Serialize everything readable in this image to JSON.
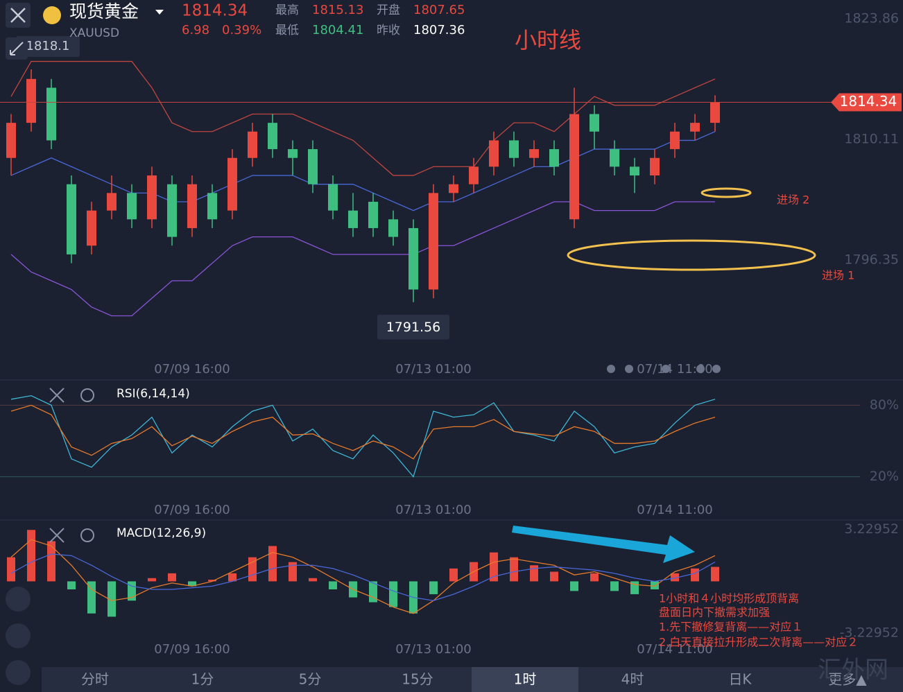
{
  "quote": {
    "name": "现货黄金",
    "symbol": "XAUUSD",
    "price": "1814.34",
    "change": "6.98",
    "change_pct": "0.39%",
    "high_label": "最高",
    "high": "1815.13",
    "open_label": "开盘",
    "open": "1807.65",
    "low_label": "最低",
    "low": "1804.41",
    "prev_label": "昨收",
    "prev": "1807.36"
  },
  "chart_title": "小时线",
  "entries": [
    "进场 2",
    "进场 1"
  ],
  "notes": [
    "1小时和４小时均形成顶背离",
    "盘面日内下撤需求加强",
    "1.先下撤修复背离——对应１",
    "2.白天直接拉升形成二次背离——对应２"
  ],
  "tabs": {
    "items": [
      "分时",
      "1分",
      "5分",
      "15分",
      "1时",
      "4时",
      "日K",
      "更多▲"
    ],
    "selected": 4
  },
  "watermark": "汇外网",
  "chart_data": [
    {
      "type": "candlestick",
      "up_color": "#e9493f",
      "down_color": "#3ebf80",
      "categories": [
        null,
        null,
        null,
        null,
        null,
        null,
        null,
        null,
        null,
        "07/09 16:00",
        null,
        null,
        null,
        null,
        null,
        null,
        null,
        null,
        null,
        null,
        null,
        "07/13 01:00",
        null,
        null,
        null,
        null,
        null,
        null,
        null,
        null,
        null,
        null,
        null,
        "07/14 11:00",
        null,
        null
      ],
      "open": [
        1808,
        1812,
        1816,
        1805,
        1798,
        1802,
        1804,
        1801,
        1805,
        1800,
        1804,
        1802,
        1808,
        1812,
        1809,
        1809,
        1805,
        1802,
        1803,
        1801,
        1800,
        1793,
        1804,
        1805,
        1807,
        1810,
        1808,
        1809,
        1801,
        1813,
        1809,
        1807,
        1806,
        1809,
        1811,
        1812
      ],
      "close": [
        1812,
        1817,
        1810,
        1797,
        1802,
        1804,
        1801,
        1806,
        1799,
        1805,
        1801,
        1808,
        1811,
        1809,
        1808,
        1805,
        1802,
        1800,
        1800,
        1799,
        1793,
        1804,
        1805,
        1807,
        1810,
        1808,
        1809,
        1807,
        1813,
        1811,
        1807,
        1806,
        1808,
        1811,
        1812,
        1814.34
      ],
      "high": [
        1813,
        1818.1,
        1817,
        1806,
        1803,
        1806,
        1805,
        1807,
        1806,
        1806,
        1805,
        1809,
        1812,
        1813,
        1810,
        1810,
        1806,
        1804,
        1804,
        1802,
        1801,
        1805,
        1806,
        1808,
        1811,
        1811,
        1810,
        1810,
        1816,
        1814,
        1810,
        1808,
        1809,
        1812,
        1813,
        1815.13
      ],
      "low": [
        1806,
        1811,
        1809,
        1796,
        1797,
        1801,
        1800,
        1800,
        1798,
        1799,
        1800,
        1801,
        1807,
        1808,
        1806,
        1804,
        1801,
        1799,
        1799,
        1798,
        1791.56,
        1792,
        1803,
        1804,
        1806,
        1807,
        1807,
        1806,
        1800,
        1809,
        1806,
        1804,
        1805,
        1808,
        1810,
        1811
      ],
      "bands": [
        {
          "color": "#c0463f",
          "values": [
            1815,
            1819,
            1819,
            1819,
            1819,
            1819,
            1819,
            1816,
            1812,
            1811,
            1811,
            1812,
            1813,
            1813,
            1813,
            1812,
            1811,
            1810,
            1808,
            1806,
            1806,
            1807,
            1807,
            1807,
            1810,
            1812,
            1812,
            1811,
            1813,
            1815,
            1814,
            1814,
            1814,
            1815,
            1816,
            1817
          ]
        },
        {
          "color": "#4a68d8",
          "values": [
            1806,
            1807,
            1808,
            1807,
            1806,
            1805,
            1804,
            1804,
            1803,
            1803,
            1804,
            1805,
            1806,
            1806,
            1806,
            1805,
            1805,
            1805,
            1804,
            1803,
            1802,
            1803,
            1803,
            1804,
            1805,
            1806,
            1807,
            1807,
            1808,
            1809,
            1809,
            1809,
            1809,
            1810,
            1810,
            1811
          ]
        },
        {
          "color": "#8a55d8",
          "values": [
            1797,
            1795,
            1794,
            1793,
            1791,
            1790,
            1790,
            1792,
            1794,
            1794,
            1796,
            1798,
            1799,
            1799,
            1799,
            1798,
            1797,
            1797,
            1797,
            1797,
            1797,
            1798,
            1798,
            1799,
            1800,
            1801,
            1802,
            1803,
            1803,
            1802,
            1802,
            1802,
            1802,
            1803,
            1803,
            1803
          ]
        }
      ],
      "ylim": [
        1784.9,
        1826.0
      ],
      "yticks": [
        1823.86,
        1810.11,
        1796.35
      ]
    },
    {
      "type": "line",
      "title": "RSI(6,14,14)",
      "categories": [
        null,
        null,
        null,
        null,
        null,
        null,
        null,
        null,
        null,
        "07/09 16:00",
        null,
        null,
        null,
        null,
        null,
        null,
        null,
        null,
        null,
        null,
        null,
        "07/13 01:00",
        null,
        null,
        null,
        null,
        null,
        null,
        null,
        null,
        null,
        null,
        null,
        "07/14 11:00",
        null,
        null
      ],
      "series": [
        {
          "color": "#3fb6d6",
          "values": [
            85,
            88,
            80,
            35,
            28,
            45,
            55,
            70,
            40,
            55,
            45,
            62,
            75,
            80,
            50,
            60,
            42,
            35,
            55,
            40,
            20,
            75,
            70,
            72,
            82,
            58,
            55,
            50,
            75,
            62,
            40,
            45,
            48,
            65,
            80,
            85
          ]
        },
        {
          "color": "#e77a2a",
          "values": [
            75,
            80,
            72,
            45,
            38,
            48,
            52,
            62,
            46,
            54,
            48,
            58,
            66,
            70,
            55,
            56,
            48,
            42,
            50,
            45,
            35,
            60,
            62,
            62,
            68,
            58,
            56,
            54,
            62,
            58,
            48,
            48,
            50,
            58,
            65,
            70
          ]
        }
      ],
      "ylim": [
        0,
        100
      ],
      "yticks": [
        {
          "value": 80,
          "label": "80%"
        },
        {
          "value": 20,
          "label": "20%"
        }
      ]
    },
    {
      "type": "bar",
      "title": "MACD(12,26,9)",
      "up_color": "#e9493f",
      "down_color": "#3ebf80",
      "categories": [
        null,
        null,
        null,
        null,
        null,
        null,
        null,
        null,
        null,
        "07/09 16:00",
        null,
        null,
        null,
        null,
        null,
        null,
        null,
        null,
        null,
        null,
        null,
        "07/13 01:00",
        null,
        null,
        null,
        null,
        null,
        null,
        null,
        null,
        null,
        null,
        null,
        "07/14 11:00",
        null,
        null
      ],
      "values": [
        1.5,
        3.2,
        2.5,
        -0.5,
        -2,
        -2.2,
        -1.2,
        0.2,
        0.5,
        -0.3,
        0.1,
        0.5,
        1.5,
        2.2,
        1.2,
        0.2,
        -0.5,
        -1,
        -1.3,
        -1.6,
        -2,
        -0.8,
        0.8,
        1.2,
        1.8,
        1.5,
        1,
        0.6,
        -0.6,
        0.5,
        -0.6,
        -0.8,
        -0.5,
        0.5,
        0.8,
        0.9
      ],
      "series": [
        {
          "color": "#e77a2a",
          "values": [
            1.5,
            2.6,
            2.2,
            1.0,
            -0.5,
            -1.2,
            -1,
            -0.4,
            -0.1,
            -0.3,
            0,
            0.6,
            1.2,
            1.8,
            1.5,
            0.9,
            0.2,
            -0.5,
            -1,
            -1.6,
            -2,
            -1.2,
            -0.1,
            0.6,
            1.2,
            1.4,
            1.2,
            1,
            0.4,
            0.6,
            0.2,
            -0.2,
            -0.3,
            0.6,
            1.0,
            1.6
          ]
        },
        {
          "color": "#4a68d8",
          "values": [
            0.5,
            1.2,
            1.7,
            1.6,
            1.0,
            0.3,
            -0.3,
            -0.5,
            -0.5,
            -0.4,
            -0.3,
            0,
            0.4,
            0.8,
            1.0,
            1.0,
            0.8,
            0.4,
            -0.1,
            -0.6,
            -1,
            -1.2,
            -0.8,
            -0.3,
            0.3,
            0.6,
            0.8,
            0.9,
            0.8,
            0.7,
            0.5,
            0.2,
            0,
            0.2,
            0.5,
            1.2
          ]
        }
      ],
      "ylim": [
        -4.6,
        3.6
      ],
      "yticks": [
        3.22952,
        -3.22952
      ]
    }
  ]
}
